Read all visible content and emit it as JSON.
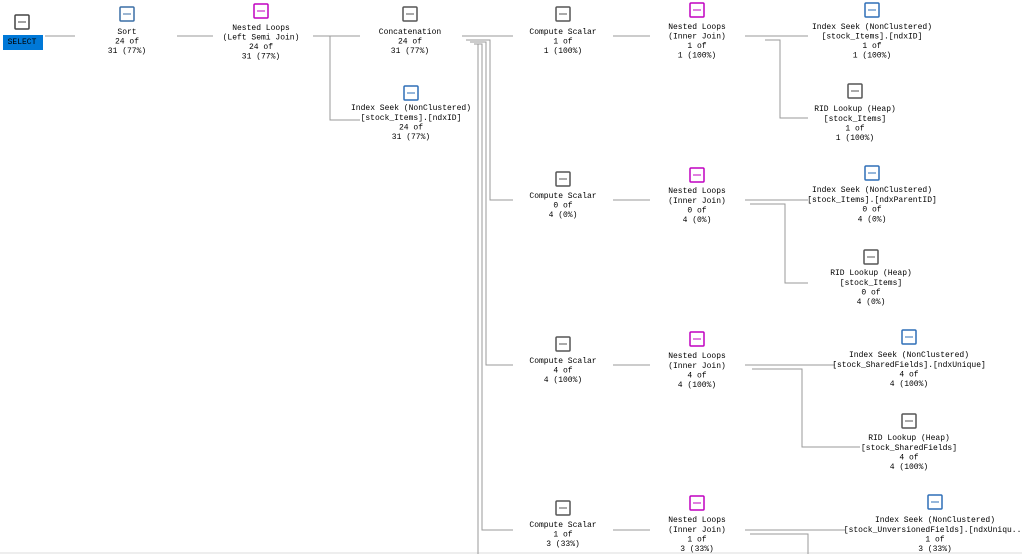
{
  "nodes": [
    {
      "lines": [
        "SELECT"
      ]
    },
    {
      "lines": [
        "Sort",
        "24 of",
        "31 (77%)"
      ]
    },
    {
      "lines": [
        "Nested Loops",
        "(Left Semi Join)",
        "24 of",
        "31 (77%)"
      ]
    },
    {
      "lines": [
        "Concatenation",
        "24 of",
        "31 (77%)"
      ]
    },
    {
      "lines": [
        "Index Seek (NonClustered)",
        "[stock_Items].[ndxID]",
        "24 of",
        "31 (77%)"
      ]
    },
    {
      "lines": [
        "Compute Scalar",
        "1 of",
        "1 (100%)"
      ]
    },
    {
      "lines": [
        "Nested Loops",
        "(Inner Join)",
        "1 of",
        "1 (100%)"
      ]
    },
    {
      "lines": [
        "Index Seek (NonClustered)",
        "[stock_Items].[ndxID]",
        "1 of",
        "1 (100%)"
      ]
    },
    {
      "lines": [
        "RID Lookup (Heap)",
        "[stock_Items]",
        "1 of",
        "1 (100%)"
      ]
    },
    {
      "lines": [
        "Compute Scalar",
        "0 of",
        "4 (0%)"
      ]
    },
    {
      "lines": [
        "Nested Loops",
        "(Inner Join)",
        "0 of",
        "4 (0%)"
      ]
    },
    {
      "lines": [
        "Index Seek (NonClustered)",
        "[stock_Items].[ndxParentID]",
        "0 of",
        "4 (0%)"
      ]
    },
    {
      "lines": [
        "RID Lookup (Heap)",
        "[stock_Items]",
        "0 of",
        "4 (0%)"
      ]
    },
    {
      "lines": [
        "Compute Scalar",
        "4 of",
        "4 (100%)"
      ]
    },
    {
      "lines": [
        "Nested Loops",
        "(Inner Join)",
        "4 of",
        "4 (100%)"
      ]
    },
    {
      "lines": [
        "Index Seek (NonClustered)",
        "[stock_SharedFields].[ndxUnique]",
        "4 of",
        "4 (100%)"
      ]
    },
    {
      "lines": [
        "RID Lookup (Heap)",
        "[stock_SharedFields]",
        "4 of",
        "4 (100%)"
      ]
    },
    {
      "lines": [
        "Compute Scalar",
        "1 of",
        "3 (33%)"
      ]
    },
    {
      "lines": [
        "Nested Loops",
        "(Inner Join)",
        "1 of",
        "3 (33%)"
      ]
    },
    {
      "lines": [
        "Index Seek (NonClustered)",
        "[stock_UnversionedFields].[ndxUniqu...",
        "1 of",
        "3 (33%)"
      ]
    }
  ]
}
